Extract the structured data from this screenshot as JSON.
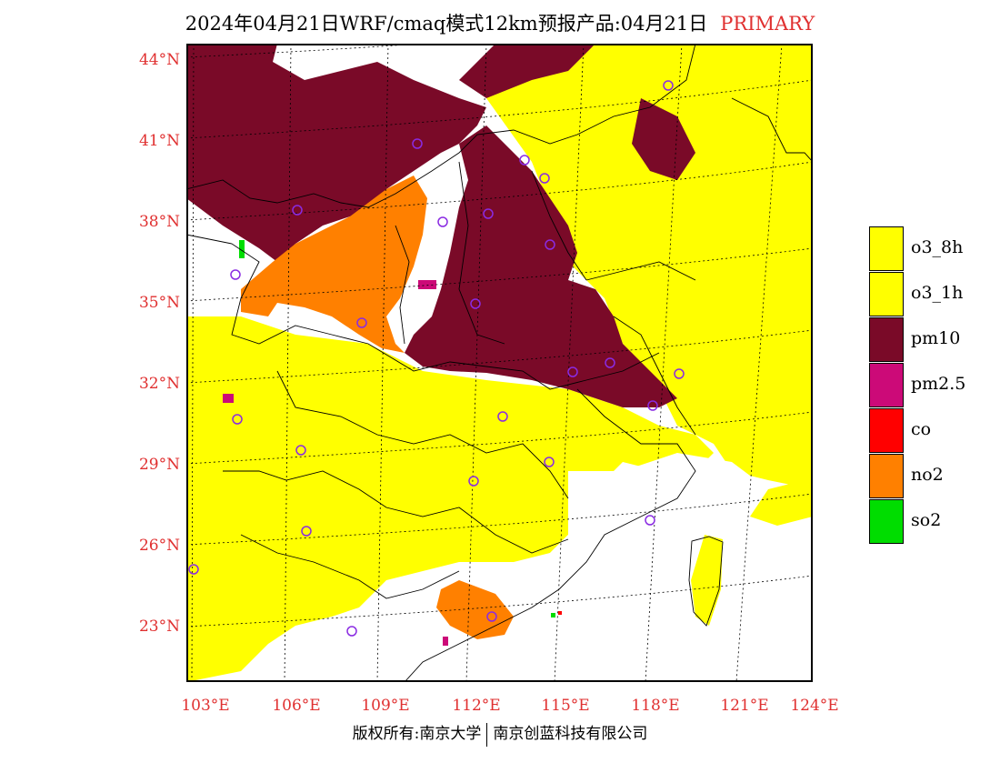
{
  "title": {
    "text": "2024年04月21日WRF/cmaq模式12km预报产品:04月21日",
    "tag": "PRIMARY"
  },
  "axes": {
    "lat_labels": [
      "44°N",
      "41°N",
      "38°N",
      "35°N",
      "32°N",
      "29°N",
      "26°N",
      "23°N"
    ],
    "lon_labels": [
      "103°E",
      "106°E",
      "109°E",
      "112°E",
      "115°E",
      "118°E",
      "121°E",
      "124°E"
    ]
  },
  "legend": {
    "items": [
      {
        "label": "o3_8h",
        "color": "#ffff00"
      },
      {
        "label": "o3_1h",
        "color": "#ffff00"
      },
      {
        "label": "pm10",
        "color": "#7a0a28"
      },
      {
        "label": "pm2.5",
        "color": "#cc0a78"
      },
      {
        "label": "co",
        "color": "#ff0000"
      },
      {
        "label": "no2",
        "color": "#ff8000"
      },
      {
        "label": "so2",
        "color": "#00dd00"
      }
    ]
  },
  "footer": {
    "left": "版权所有:南京大学",
    "right": "南京创蓝科技有限公司"
  },
  "colors": {
    "accent": "#e03030",
    "station_marker": "#8a2be2"
  }
}
